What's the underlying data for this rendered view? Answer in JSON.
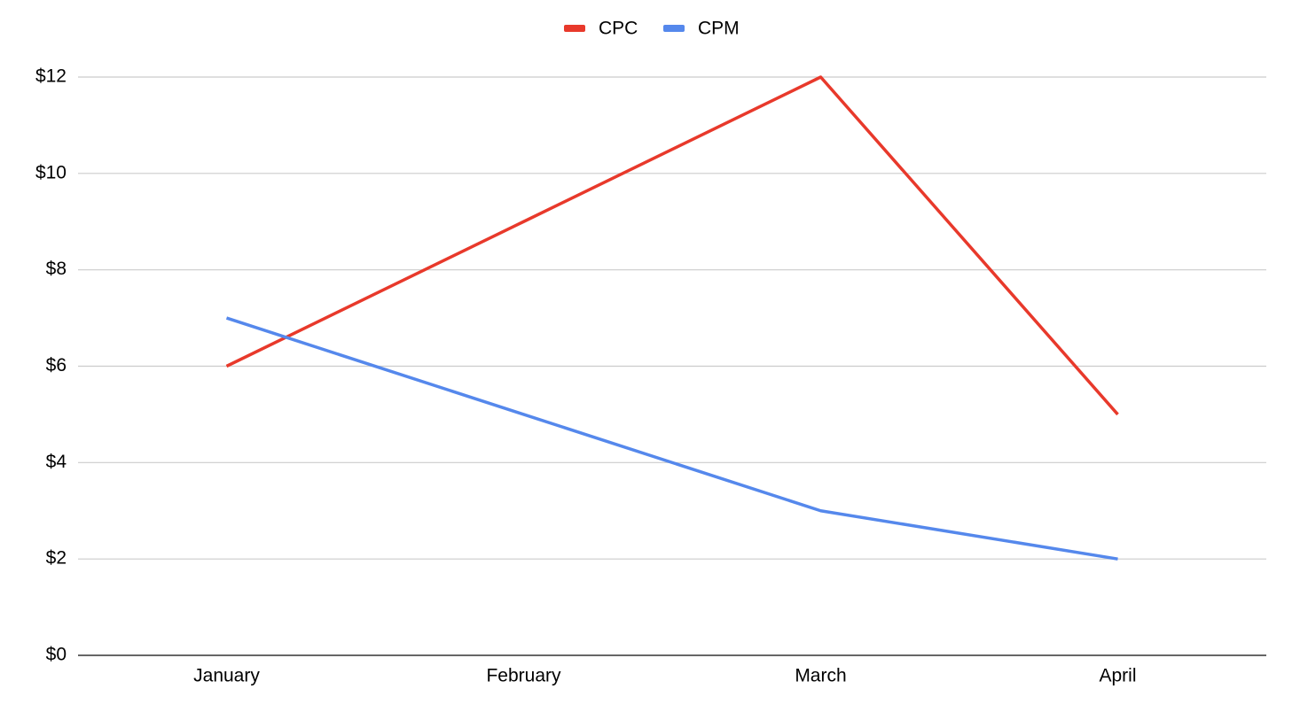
{
  "chart_data": {
    "type": "line",
    "categories": [
      "January",
      "February",
      "March",
      "April"
    ],
    "series": [
      {
        "name": "CPC",
        "color": "#e8392b",
        "values": [
          6,
          9,
          12,
          5
        ]
      },
      {
        "name": "CPM",
        "color": "#5588ec",
        "values": [
          7,
          5,
          3,
          2
        ]
      }
    ],
    "ylim": [
      0,
      12
    ],
    "yticks": [
      {
        "value": 0,
        "label": "$0"
      },
      {
        "value": 2,
        "label": "$2"
      },
      {
        "value": 4,
        "label": "$4"
      },
      {
        "value": 6,
        "label": "$6"
      },
      {
        "value": 8,
        "label": "$8"
      },
      {
        "value": 10,
        "label": "$10"
      },
      {
        "value": 12,
        "label": "$12"
      }
    ],
    "grid": true,
    "legend": "top"
  }
}
